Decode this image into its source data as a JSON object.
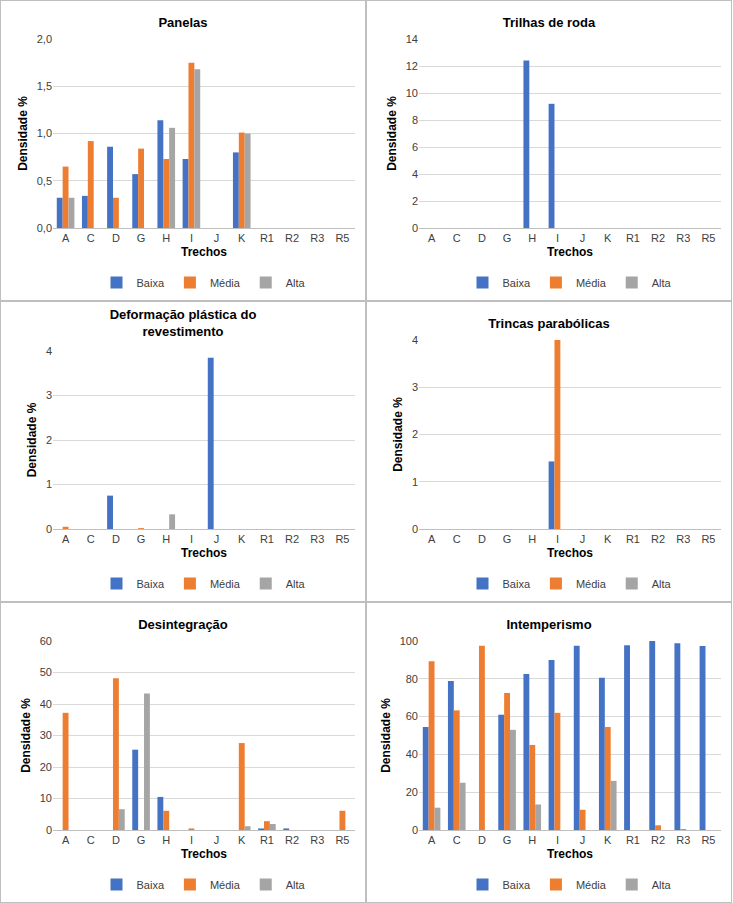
{
  "chart_data": [
    {
      "type": "bar",
      "title": "Panelas",
      "x_label": "Trechos",
      "y_label": "Densidade %",
      "categories": [
        "A",
        "C",
        "D",
        "G",
        "H",
        "I",
        "J",
        "K",
        "R1",
        "R2",
        "R3",
        "R5"
      ],
      "series": [
        {
          "name": "Baixa",
          "color": "#4472c4",
          "values": [
            0.32,
            0.34,
            0.86,
            0.57,
            1.14,
            0.73,
            0,
            0.8,
            0,
            0,
            0,
            0
          ]
        },
        {
          "name": "Média",
          "color": "#ed7d31",
          "values": [
            0.65,
            0.92,
            0.32,
            0.84,
            0.73,
            1.75,
            0,
            1.01,
            0,
            0,
            0,
            0
          ]
        },
        {
          "name": "Alta",
          "color": "#a5a5a5",
          "values": [
            0.32,
            0,
            0,
            0,
            1.06,
            1.68,
            0,
            1.0,
            0,
            0,
            0,
            0
          ]
        }
      ],
      "ylim": [
        0,
        2
      ],
      "yticks": [
        {
          "value": 0,
          "label": "0,0"
        },
        {
          "value": 0.5,
          "label": "0,5"
        },
        {
          "value": 1,
          "label": "1,0"
        },
        {
          "value": 1.5,
          "label": "1,5"
        },
        {
          "value": 2,
          "label": "2,0"
        }
      ],
      "grid": true,
      "legend": "bottom"
    },
    {
      "type": "bar",
      "title": "Trilhas de roda",
      "x_label": "Trechos",
      "y_label": "Densidade %",
      "categories": [
        "A",
        "C",
        "D",
        "G",
        "H",
        "I",
        "J",
        "K",
        "R1",
        "R2",
        "R3",
        "R5"
      ],
      "series": [
        {
          "name": "Baixa",
          "color": "#4472c4",
          "values": [
            0,
            0,
            0,
            0,
            12.4,
            9.2,
            0,
            0,
            0,
            0,
            0,
            0
          ]
        },
        {
          "name": "Média",
          "color": "#ed7d31",
          "values": [
            0,
            0,
            0,
            0,
            0,
            0,
            0,
            0,
            0,
            0,
            0,
            0
          ]
        },
        {
          "name": "Alta",
          "color": "#a5a5a5",
          "values": [
            0,
            0,
            0,
            0,
            0,
            0,
            0,
            0,
            0,
            0,
            0,
            0
          ]
        }
      ],
      "ylim": [
        0,
        14
      ],
      "yticks": [
        0,
        2,
        4,
        6,
        8,
        10,
        12,
        14
      ],
      "grid": true,
      "legend": "bottom"
    },
    {
      "type": "bar",
      "title": "Deformação plástica do\nrevestimento",
      "x_label": "Trechos",
      "y_label": "Densidade %",
      "categories": [
        "A",
        "C",
        "D",
        "G",
        "H",
        "I",
        "J",
        "K",
        "R1",
        "R2",
        "R3",
        "R5"
      ],
      "series": [
        {
          "name": "Baixa",
          "color": "#4472c4",
          "values": [
            0,
            0,
            0.75,
            0,
            0,
            0,
            3.85,
            0,
            0,
            0,
            0,
            0
          ]
        },
        {
          "name": "Média",
          "color": "#ed7d31",
          "values": [
            0.05,
            0,
            0,
            0.02,
            0,
            0,
            0,
            0,
            0,
            0,
            0,
            0
          ]
        },
        {
          "name": "Alta",
          "color": "#a5a5a5",
          "values": [
            0,
            0,
            0,
            0,
            0.33,
            0,
            0,
            0,
            0,
            0,
            0,
            0
          ]
        }
      ],
      "ylim": [
        0,
        4
      ],
      "yticks": [
        0,
        1,
        2,
        3,
        4
      ],
      "grid": true,
      "legend": "bottom"
    },
    {
      "type": "bar",
      "title": "Trincas parabólicas",
      "x_label": "Trechos",
      "y_label": "Densidade %",
      "categories": [
        "A",
        "C",
        "D",
        "G",
        "H",
        "I",
        "J",
        "K",
        "R1",
        "R2",
        "R3",
        "R5"
      ],
      "series": [
        {
          "name": "Baixa",
          "color": "#4472c4",
          "values": [
            0,
            0,
            0,
            0,
            0,
            1.43,
            0,
            0,
            0,
            0,
            0,
            0
          ]
        },
        {
          "name": "Média",
          "color": "#ed7d31",
          "values": [
            0,
            0,
            0,
            0,
            0,
            4.0,
            0,
            0,
            0,
            0,
            0,
            0
          ]
        },
        {
          "name": "Alta",
          "color": "#a5a5a5",
          "values": [
            0,
            0,
            0,
            0,
            0,
            0,
            0,
            0,
            0,
            0,
            0,
            0
          ]
        }
      ],
      "ylim": [
        0,
        4
      ],
      "yticks": [
        0,
        1,
        2,
        3,
        4
      ],
      "grid": true,
      "legend": "bottom"
    },
    {
      "type": "bar",
      "title": "Desintegração",
      "x_label": "Trechos",
      "y_label": "Densidade %",
      "categories": [
        "A",
        "C",
        "D",
        "G",
        "H",
        "I",
        "J",
        "K",
        "R1",
        "R2",
        "R3",
        "R5"
      ],
      "series": [
        {
          "name": "Baixa",
          "color": "#4472c4",
          "values": [
            0,
            0,
            0,
            25.5,
            10.5,
            0,
            0,
            0,
            0.5,
            0.5,
            0,
            0
          ]
        },
        {
          "name": "Média",
          "color": "#ed7d31",
          "values": [
            37.2,
            0,
            48.2,
            0,
            6.1,
            0.5,
            0,
            27.6,
            2.8,
            0,
            0,
            6.1
          ]
        },
        {
          "name": "Alta",
          "color": "#a5a5a5",
          "values": [
            0,
            0,
            6.6,
            43.3,
            0,
            0,
            0,
            1.2,
            1.9,
            0,
            0,
            0
          ]
        }
      ],
      "ylim": [
        0,
        60
      ],
      "yticks": [
        0,
        10,
        20,
        30,
        40,
        50,
        60
      ],
      "grid": true,
      "legend": "bottom"
    },
    {
      "type": "bar",
      "title": "Intemperismo",
      "x_label": "Trechos",
      "y_label": "Densidade %",
      "categories": [
        "A",
        "C",
        "D",
        "G",
        "H",
        "I",
        "J",
        "K",
        "R1",
        "R2",
        "R3",
        "R5"
      ],
      "series": [
        {
          "name": "Baixa",
          "color": "#4472c4",
          "values": [
            54.5,
            78.8,
            0,
            61,
            82.5,
            90,
            97.5,
            80.5,
            97.8,
            100,
            98.8,
            97.3
          ]
        },
        {
          "name": "Média",
          "color": "#ed7d31",
          "values": [
            89.3,
            63.3,
            97.5,
            72.5,
            45,
            62,
            10.7,
            54.5,
            0,
            2.5,
            0.5,
            0
          ]
        },
        {
          "name": "Alta",
          "color": "#a5a5a5",
          "values": [
            11.8,
            25,
            0,
            53,
            13.5,
            0,
            0,
            26,
            0,
            0,
            0,
            0
          ]
        }
      ],
      "ylim": [
        0,
        100
      ],
      "yticks": [
        0,
        20,
        40,
        60,
        80,
        100
      ],
      "grid": true,
      "legend": "bottom"
    }
  ]
}
